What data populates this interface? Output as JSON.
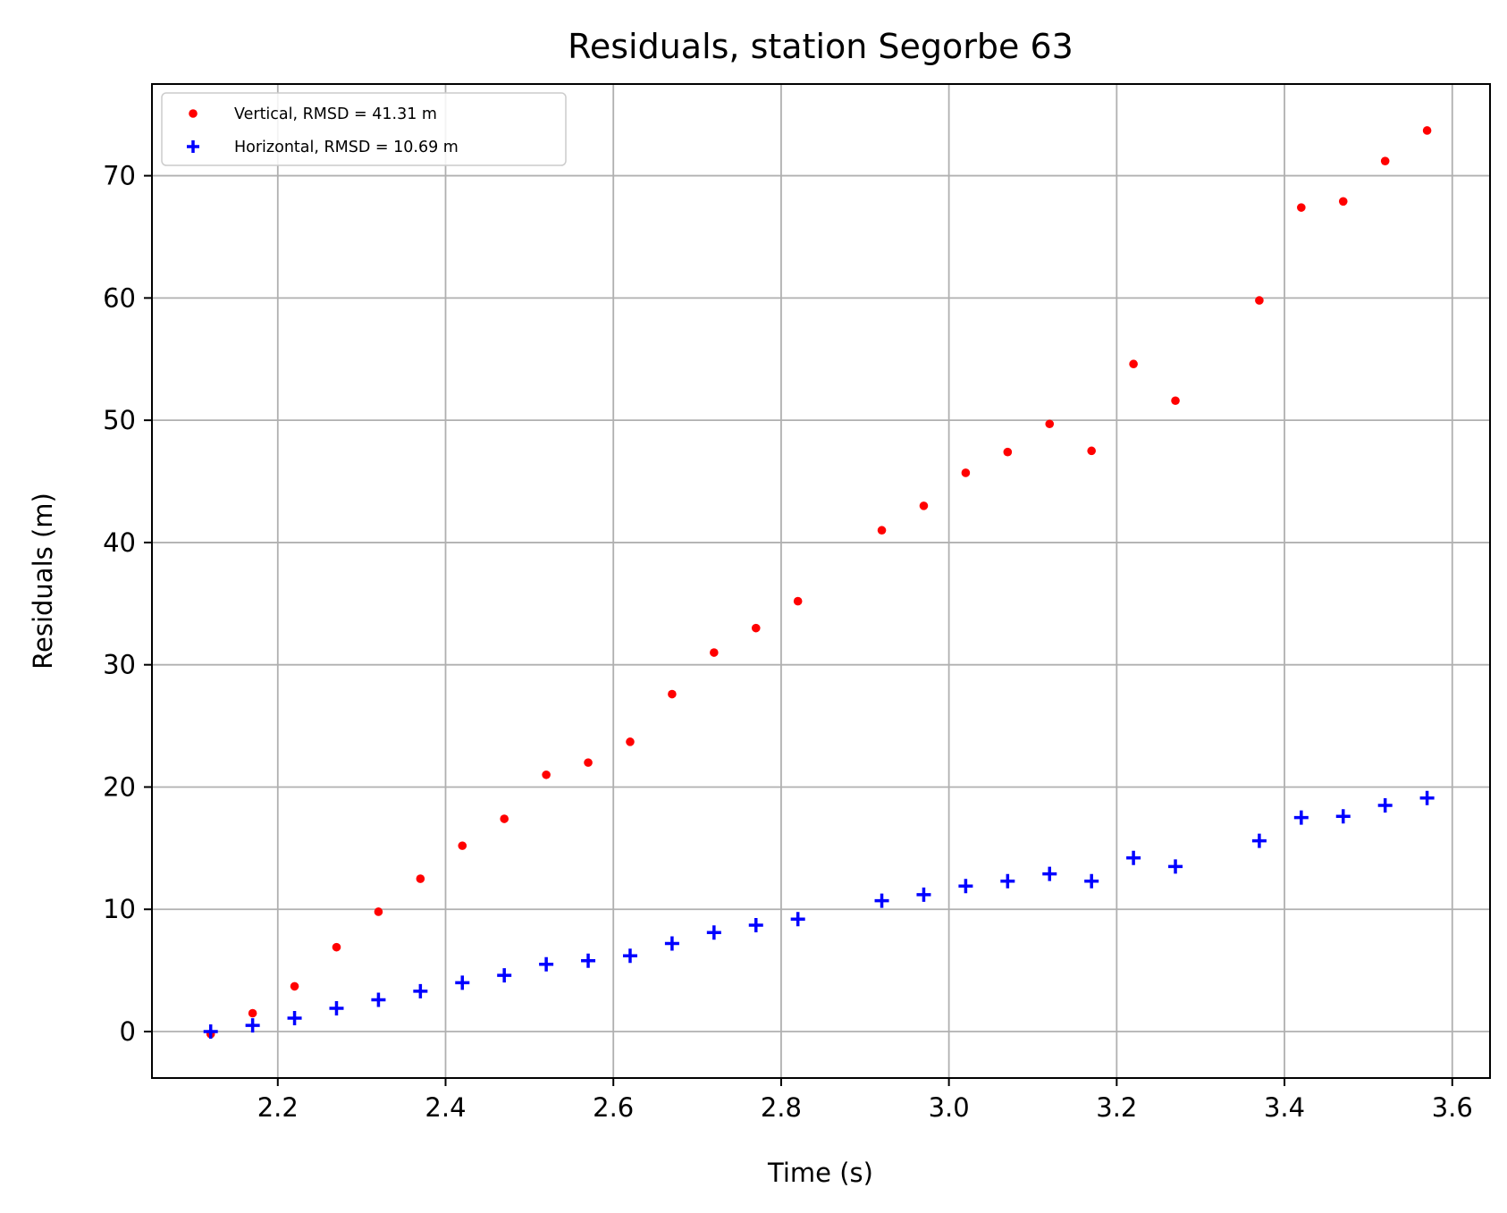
{
  "chart_data": {
    "type": "scatter",
    "title": "Residuals, station Segorbe 63",
    "xlabel": "Time (s)",
    "ylabel": "Residuals (m)",
    "xlim": [
      2.05,
      3.645
    ],
    "ylim": [
      -3.8,
      77.5
    ],
    "xticks": [
      2.2,
      2.4,
      2.6,
      2.8,
      3.0,
      3.2,
      3.4,
      3.6
    ],
    "yticks": [
      0,
      10,
      20,
      30,
      40,
      50,
      60,
      70
    ],
    "grid": true,
    "legend_position": "top-left",
    "series": [
      {
        "name": "Vertical, RMSD = 41.31 m",
        "marker": "dot",
        "color": "#ff0000",
        "x": [
          2.12,
          2.17,
          2.22,
          2.27,
          2.32,
          2.37,
          2.42,
          2.47,
          2.52,
          2.57,
          2.62,
          2.67,
          2.72,
          2.77,
          2.82,
          2.92,
          2.97,
          3.02,
          3.07,
          3.12,
          3.17,
          3.22,
          3.27,
          3.37,
          3.42,
          3.47,
          3.52,
          3.57
        ],
        "y": [
          -0.2,
          1.5,
          3.7,
          6.9,
          9.8,
          12.5,
          15.2,
          17.4,
          21.0,
          22.0,
          23.7,
          27.6,
          31.0,
          33.0,
          35.2,
          41.0,
          43.0,
          45.7,
          47.4,
          49.7,
          47.5,
          54.6,
          51.6,
          59.8,
          67.4,
          67.9,
          71.2,
          73.7
        ]
      },
      {
        "name": "Horizontal, RMSD = 10.69 m",
        "marker": "plus",
        "color": "#0000ff",
        "x": [
          2.12,
          2.17,
          2.22,
          2.27,
          2.32,
          2.37,
          2.42,
          2.47,
          2.52,
          2.57,
          2.62,
          2.67,
          2.72,
          2.77,
          2.82,
          2.92,
          2.97,
          3.02,
          3.07,
          3.12,
          3.17,
          3.22,
          3.27,
          3.37,
          3.42,
          3.47,
          3.52,
          3.57
        ],
        "y": [
          0.0,
          0.5,
          1.1,
          1.9,
          2.6,
          3.3,
          4.0,
          4.6,
          5.5,
          5.8,
          6.2,
          7.2,
          8.1,
          8.7,
          9.2,
          10.7,
          11.2,
          11.9,
          12.3,
          12.9,
          12.3,
          14.2,
          13.5,
          15.6,
          17.5,
          17.6,
          18.5,
          19.1
        ]
      }
    ]
  }
}
